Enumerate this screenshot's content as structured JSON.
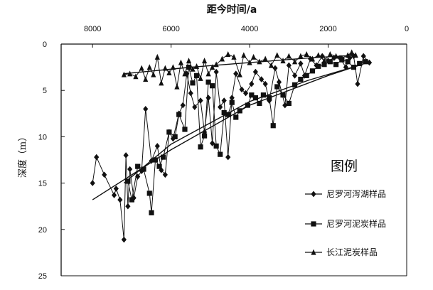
{
  "chart_data": {
    "type": "line",
    "title": "距今时间/a",
    "ylabel": "深度（m）",
    "xlim": [
      8800,
      0
    ],
    "ylim": [
      0,
      25
    ],
    "x_axis_position": "top",
    "y_axis_inverted": true,
    "x_ticks": [
      8000,
      6000,
      4000,
      2000,
      0
    ],
    "x_tick_labels": [
      "8000",
      "6000",
      "4000",
      "2000",
      "0"
    ],
    "y_ticks": [
      0,
      5,
      10,
      15,
      20,
      25
    ],
    "y_tick_labels": [
      "0",
      "5",
      "10",
      "15",
      "20",
      "25"
    ],
    "legend": {
      "title": "图例",
      "placement": "lower-right"
    },
    "series": [
      {
        "name": "尼罗河泻湖样品",
        "marker": "diamond",
        "points": [
          [
            8000,
            15
          ],
          [
            7900,
            12.2
          ],
          [
            7700,
            14.1
          ],
          [
            7450,
            16.3
          ],
          [
            7400,
            15.6
          ],
          [
            7300,
            16.8
          ],
          [
            7200,
            21.1
          ],
          [
            7150,
            12
          ],
          [
            7100,
            17.5
          ],
          [
            7050,
            13.5
          ],
          [
            6950,
            16.6
          ],
          [
            6850,
            14.3
          ],
          [
            6750,
            13.7
          ],
          [
            6650,
            7
          ],
          [
            6500,
            12.6
          ],
          [
            6350,
            11
          ],
          [
            6250,
            13.6
          ],
          [
            6150,
            14.1
          ],
          [
            6050,
            9.5
          ],
          [
            5950,
            10.2
          ],
          [
            5800,
            7.5
          ],
          [
            5700,
            6.6
          ],
          [
            5600,
            3.2
          ],
          [
            5500,
            5.3
          ],
          [
            5400,
            6.8
          ],
          [
            5250,
            6.1
          ],
          [
            5150,
            9.5
          ],
          [
            5050,
            5.8
          ],
          [
            4950,
            10.7
          ],
          [
            4850,
            3
          ],
          [
            4750,
            6.8
          ],
          [
            4650,
            6.1
          ],
          [
            4550,
            12.2
          ],
          [
            4450,
            5.8
          ],
          [
            4350,
            3.2
          ],
          [
            4200,
            4.9
          ],
          [
            4100,
            5.3
          ],
          [
            3950,
            4.3
          ],
          [
            3850,
            3
          ],
          [
            3700,
            3.8
          ],
          [
            3600,
            4.3
          ],
          [
            3500,
            6.1
          ],
          [
            3350,
            2.6
          ],
          [
            3250,
            4.1
          ],
          [
            3100,
            6.6
          ],
          [
            3000,
            2.3
          ],
          [
            2850,
            3.4
          ],
          [
            2700,
            2.1
          ],
          [
            2600,
            3.4
          ],
          [
            2450,
            1.6
          ],
          [
            2300,
            2.3
          ],
          [
            2150,
            1.3
          ],
          [
            2000,
            1.8
          ],
          [
            1850,
            1.5
          ],
          [
            1700,
            1.5
          ],
          [
            1550,
            2.5
          ],
          [
            1450,
            1.5
          ],
          [
            1350,
            1.3
          ],
          [
            1250,
            4.3
          ],
          [
            1100,
            1.3
          ],
          [
            950,
            2
          ]
        ]
      },
      {
        "name": "尼罗河泥炭样品",
        "marker": "square",
        "points": [
          [
            7100,
            14.8
          ],
          [
            7000,
            16.8
          ],
          [
            6850,
            13.2
          ],
          [
            6700,
            13.5
          ],
          [
            6550,
            16.1
          ],
          [
            6500,
            18.2
          ],
          [
            6400,
            12.5
          ],
          [
            6300,
            13.2
          ],
          [
            6200,
            12.2
          ],
          [
            6050,
            9.5
          ],
          [
            5900,
            10
          ],
          [
            5800,
            7.6
          ],
          [
            5650,
            9.2
          ],
          [
            5550,
            2.5
          ],
          [
            5450,
            4.2
          ],
          [
            5350,
            3.4
          ],
          [
            5250,
            11.1
          ],
          [
            5150,
            9.9
          ],
          [
            5050,
            4.1
          ],
          [
            4950,
            4.5
          ],
          [
            4850,
            11
          ],
          [
            4750,
            11.9
          ],
          [
            4650,
            7.4
          ],
          [
            4550,
            7.6
          ],
          [
            4450,
            6.3
          ],
          [
            4350,
            7.9
          ],
          [
            4250,
            7.2
          ],
          [
            4050,
            6.6
          ],
          [
            3950,
            5.5
          ],
          [
            3850,
            5.8
          ],
          [
            3750,
            6.4
          ],
          [
            3650,
            5.5
          ],
          [
            3500,
            5.8
          ],
          [
            3400,
            8.8
          ],
          [
            3300,
            4.6
          ],
          [
            3150,
            5.5
          ],
          [
            3000,
            6.4
          ],
          [
            2850,
            4.4
          ],
          [
            2700,
            3.8
          ],
          [
            2550,
            3.4
          ],
          [
            2400,
            2.9
          ],
          [
            2250,
            2.4
          ],
          [
            2100,
            2.2
          ],
          [
            1950,
            1.9
          ],
          [
            1800,
            2.2
          ],
          [
            1650,
            1.7
          ],
          [
            1500,
            1.9
          ],
          [
            1350,
            2.5
          ],
          [
            1200,
            2.1
          ],
          [
            1050,
            1.9
          ]
        ]
      },
      {
        "name": "长江泥炭样品",
        "marker": "triangle",
        "points": [
          [
            7200,
            3.3
          ],
          [
            7050,
            3.2
          ],
          [
            6900,
            3.5
          ],
          [
            6750,
            2.6
          ],
          [
            6650,
            3.8
          ],
          [
            6550,
            2.5
          ],
          [
            6450,
            3.3
          ],
          [
            6350,
            1.4
          ],
          [
            6250,
            4.2
          ],
          [
            6150,
            2.6
          ],
          [
            6050,
            3.1
          ],
          [
            5950,
            2.5
          ],
          [
            5850,
            4.6
          ],
          [
            5750,
            2
          ],
          [
            5650,
            3.2
          ],
          [
            5550,
            1.8
          ],
          [
            5450,
            2.7
          ],
          [
            5350,
            2.4
          ],
          [
            5250,
            3.7
          ],
          [
            5150,
            1.8
          ],
          [
            5050,
            3.2
          ],
          [
            4950,
            2.5
          ],
          [
            4850,
            2.2
          ],
          [
            4700,
            1.6
          ],
          [
            4550,
            1.1
          ],
          [
            4400,
            1.4
          ],
          [
            4250,
            3.3
          ],
          [
            4150,
            1.2
          ],
          [
            4000,
            2
          ],
          [
            3900,
            1.4
          ],
          [
            3750,
            1.9
          ],
          [
            3600,
            1.6
          ],
          [
            3450,
            2.3
          ],
          [
            3300,
            1.2
          ],
          [
            3150,
            1.8
          ],
          [
            3000,
            1.3
          ],
          [
            2850,
            1.9
          ],
          [
            2700,
            1.3
          ],
          [
            2550,
            1.1
          ],
          [
            2400,
            1.6
          ],
          [
            2250,
            1.2
          ],
          [
            2100,
            1.8
          ],
          [
            1950,
            1.1
          ],
          [
            1800,
            1.3
          ],
          [
            1650,
            1.5
          ],
          [
            1500,
            1.2
          ],
          [
            1400,
            0.9
          ],
          [
            1300,
            1.2
          ]
        ]
      }
    ],
    "trend_lines": [
      [
        [
          8000,
          16.8
        ],
        [
          6000,
          11.4
        ],
        [
          4000,
          6.6
        ],
        [
          2000,
          3.4
        ],
        [
          1000,
          2
        ]
      ],
      [
        [
          7200,
          15
        ],
        [
          6000,
          10.8
        ],
        [
          4000,
          6.2
        ],
        [
          2500,
          3.9
        ],
        [
          1300,
          2.4
        ]
      ],
      [
        [
          7200,
          3.2
        ],
        [
          5500,
          2.5
        ],
        [
          4000,
          2
        ],
        [
          2500,
          1.5
        ],
        [
          1300,
          1.2
        ]
      ]
    ]
  }
}
